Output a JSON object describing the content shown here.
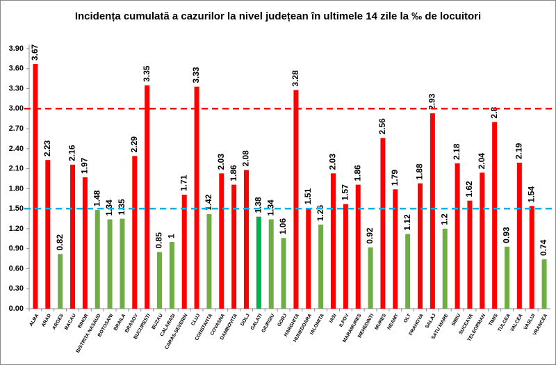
{
  "chart_data": {
    "type": "bar",
    "title": "Incidența cumulată a cazurilor la nivel județean în ultimele 14 zile la ‰ de locuitori",
    "categories": [
      "ALBA",
      "ARAD",
      "ARGES",
      "BACAU",
      "BIHOR",
      "BISTRITA NASAUD",
      "BOTOSANI",
      "BRAILA",
      "BRASOV",
      "BUCURESTI",
      "BUZAU",
      "CALARASI",
      "CARAS-SEVERIN",
      "CLUJ",
      "CONSTANTA",
      "COVASNA",
      "DAMBOVITA",
      "DOLJ",
      "GALATI",
      "GIURGIU",
      "GORJ",
      "HARGHITA",
      "HUNEDOARA",
      "IALOMITA",
      "IASI",
      "ILFOV",
      "MARAMURES",
      "MEHEDINTI",
      "MURES",
      "NEAMT",
      "OLT",
      "PRAHOVA",
      "SALAJ",
      "SATU MARE",
      "SIBIU",
      "SUCEAVA",
      "TELEORMAN",
      "TIMIS",
      "TULCEA",
      "VALCEA",
      "VASLUI",
      "VRANCEA"
    ],
    "values": [
      3.67,
      2.23,
      0.82,
      2.16,
      1.97,
      1.48,
      1.34,
      1.35,
      2.29,
      3.35,
      0.85,
      1,
      1.71,
      3.33,
      1.42,
      2.03,
      1.86,
      2.08,
      1.38,
      1.34,
      1.06,
      3.28,
      1.51,
      1.26,
      2.03,
      1.57,
      1.86,
      0.92,
      2.56,
      1.79,
      1.12,
      1.88,
      2.93,
      1.2,
      2.18,
      1.62,
      2.04,
      2.8,
      0.93,
      2.19,
      1.54,
      0.74
    ],
    "colors": [
      "#ff0000",
      "#ff0000",
      "#70ad47",
      "#ff0000",
      "#ff0000",
      "#70ad47",
      "#70ad47",
      "#70ad47",
      "#ff0000",
      "#ff0000",
      "#70ad47",
      "#70ad47",
      "#ff0000",
      "#ff0000",
      "#70ad47",
      "#ff0000",
      "#ff0000",
      "#ff0000",
      "#00b050",
      "#70ad47",
      "#70ad47",
      "#ff0000",
      "#ff0000",
      "#70ad47",
      "#ff0000",
      "#ff0000",
      "#ff0000",
      "#70ad47",
      "#ff0000",
      "#ff0000",
      "#70ad47",
      "#ff0000",
      "#ff0000",
      "#70ad47",
      "#ff0000",
      "#ff0000",
      "#ff0000",
      "#ff0000",
      "#70ad47",
      "#ff0000",
      "#ff0000",
      "#70ad47"
    ],
    "ylim": [
      0,
      3.9
    ],
    "yticks": [
      {
        "value": 0,
        "label": "0.00"
      },
      {
        "value": 0.3,
        "label": "0.30"
      },
      {
        "value": 0.6,
        "label": "0.60"
      },
      {
        "value": 0.9,
        "label": "0.90"
      },
      {
        "value": 1.2,
        "label": "1.20"
      },
      {
        "value": 1.5,
        "label": "1.50"
      },
      {
        "value": 1.8,
        "label": "1.80"
      },
      {
        "value": 2.1,
        "label": "2.10"
      },
      {
        "value": 2.4,
        "label": "2.40"
      },
      {
        "value": 2.7,
        "label": "2.70"
      },
      {
        "value": 3,
        "label": "3.00"
      },
      {
        "value": 3.3,
        "label": "3.30"
      },
      {
        "value": 3.6,
        "label": "3.60"
      },
      {
        "value": 3.9,
        "label": "3.90"
      }
    ],
    "reference_lines": [
      {
        "value": 3,
        "color": "#ff0000"
      },
      {
        "value": 1.5,
        "color": "#00b0f0"
      }
    ]
  }
}
